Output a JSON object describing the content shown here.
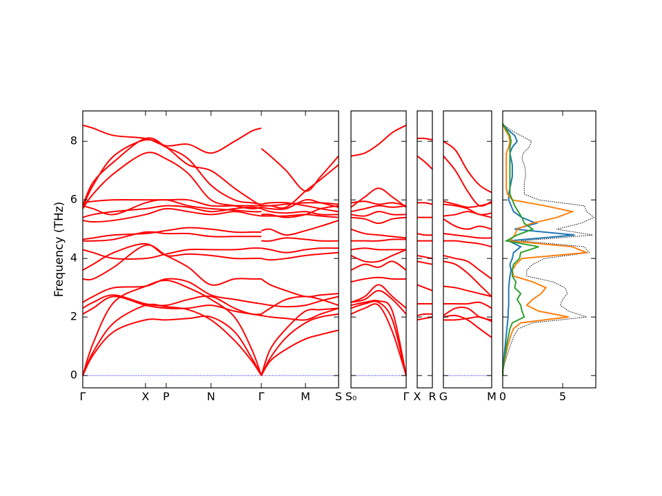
{
  "chart_data": [
    {
      "type": "bands",
      "ylabel": "Frequency (THz)",
      "color": "#ff0000",
      "hline": 0,
      "hline_color": "#0000ff",
      "ylim": [
        -0.42,
        9.04
      ],
      "yticks": [
        0,
        2,
        4,
        6,
        8
      ],
      "xlim": [
        0,
        3.71
      ],
      "xticks": [
        {
          "value": 0,
          "label": "Γ"
        },
        {
          "value": 0.91,
          "label": "X"
        },
        {
          "value": 1.21,
          "label": "P"
        },
        {
          "value": 1.86,
          "label": "N"
        },
        {
          "value": 2.59,
          "label": "Γ"
        },
        {
          "value": 3.23,
          "label": "M"
        },
        {
          "value": 3.71,
          "label": "S"
        }
      ],
      "x": [
        0,
        0.15,
        0.45,
        0.91,
        1.21,
        1.53,
        1.86,
        2.2,
        2.45,
        2.59,
        2.59,
        2.72,
        2.95,
        3.23,
        3.45,
        3.71
      ],
      "bands": [
        [
          0,
          0.7,
          1.5,
          1.9,
          1.9,
          1.95,
          2.0,
          1.5,
          0.6,
          0,
          0,
          0.5,
          0.9,
          1.25,
          1.4,
          1.55
        ],
        [
          0,
          0.8,
          1.8,
          2.4,
          2.35,
          2.25,
          1.9,
          1.2,
          0.5,
          0,
          0,
          0.6,
          1.3,
          1.8,
          2.0,
          2.1
        ],
        [
          0,
          1.1,
          2.5,
          3.05,
          3.25,
          3.0,
          2.6,
          2.0,
          0.9,
          0,
          0,
          0.9,
          1.6,
          2.2,
          2.25,
          2.3
        ],
        [
          2.1,
          2.3,
          2.7,
          2.4,
          2.3,
          2.3,
          2.4,
          2.2,
          2.1,
          2.05,
          2.05,
          2.0,
          1.95,
          1.9,
          2.1,
          2.3
        ],
        [
          2.3,
          2.5,
          2.75,
          2.45,
          2.4,
          2.6,
          2.7,
          2.3,
          2.1,
          2.1,
          2.1,
          2.3,
          2.6,
          2.7,
          2.6,
          2.4
        ],
        [
          2.5,
          2.7,
          3.0,
          3.05,
          3.3,
          3.2,
          2.75,
          2.6,
          2.5,
          2.45,
          2.45,
          2.4,
          2.35,
          2.4,
          2.55,
          2.7
        ],
        [
          3.3,
          3.3,
          3.7,
          4.45,
          4.1,
          3.7,
          3.1,
          3.3,
          3.3,
          3.3,
          3.3,
          3.1,
          2.9,
          2.7,
          2.75,
          2.8
        ],
        [
          3.6,
          3.8,
          4.2,
          4.5,
          4.1,
          4.15,
          4.1,
          4.0,
          4.0,
          4.0,
          4.0,
          3.95,
          4.0,
          4.1,
          4.15,
          4.2
        ],
        [
          4.3,
          4.2,
          4.0,
          4.0,
          4.15,
          4.3,
          4.3,
          4.3,
          4.35,
          4.35,
          4.35,
          4.3,
          4.2,
          4.3,
          4.35,
          4.35
        ],
        [
          4.6,
          4.6,
          4.65,
          4.9,
          4.85,
          4.85,
          4.75,
          4.75,
          4.75,
          4.75,
          4.6,
          4.6,
          4.7,
          4.65,
          4.6,
          4.6
        ],
        [
          4.65,
          4.7,
          4.8,
          4.85,
          4.95,
          5.05,
          5.0,
          4.9,
          4.9,
          4.9,
          4.95,
          5.0,
          4.8,
          4.95,
          5.1,
          5.3
        ],
        [
          5.3,
          5.25,
          5.3,
          5.5,
          5.7,
          5.6,
          5.5,
          5.6,
          5.5,
          5.45,
          5.45,
          5.45,
          5.45,
          5.5,
          5.45,
          5.4
        ],
        [
          5.4,
          5.5,
          5.6,
          5.7,
          5.8,
          5.75,
          5.6,
          5.7,
          5.75,
          5.7,
          5.7,
          5.6,
          5.55,
          5.6,
          5.5,
          5.5
        ],
        [
          5.8,
          5.7,
          5.5,
          5.9,
          6.0,
          5.8,
          5.7,
          5.65,
          5.6,
          5.6,
          5.5,
          5.5,
          5.4,
          5.5,
          5.7,
          5.8
        ],
        [
          5.9,
          5.95,
          6.0,
          6.0,
          6.0,
          6.0,
          5.8,
          5.8,
          5.8,
          5.8,
          5.8,
          5.8,
          5.85,
          5.9,
          5.9,
          5.85
        ],
        [
          5.7,
          6.2,
          6.9,
          7.6,
          7.4,
          6.9,
          6.0,
          5.8,
          5.7,
          5.75,
          5.75,
          5.7,
          5.7,
          6.0,
          5.9,
          5.75
        ],
        [
          5.8,
          6.6,
          7.3,
          8.1,
          7.8,
          7.2,
          7.0,
          6.4,
          6.0,
          5.8,
          5.8,
          5.8,
          5.75,
          6.3,
          6.7,
          7.2
        ],
        [
          8.55,
          8.45,
          8.2,
          8.1,
          7.85,
          7.9,
          7.6,
          8.0,
          8.35,
          8.45,
          7.75,
          7.5,
          7.0,
          6.3,
          6.8,
          7.5
        ],
        [
          5.75,
          6.5,
          7.5,
          8.05,
          7.8,
          7.4,
          6.5,
          6.0,
          5.9,
          5.85,
          5.85,
          5.9,
          5.9,
          5.8,
          5.7,
          5.6
        ]
      ]
    },
    {
      "type": "bands",
      "color": "#ff0000",
      "hline": 0,
      "hline_color": "#0000ff",
      "ylim": [
        -0.42,
        9.04
      ],
      "xlim": [
        0,
        0.8
      ],
      "xticks": [
        {
          "value": 0,
          "label": "S₀"
        },
        {
          "value": 0.8,
          "label": "Γ"
        }
      ],
      "x": [
        0,
        0.2,
        0.4,
        0.6,
        0.8
      ],
      "bands": [
        [
          2.1,
          2.3,
          2.4,
          1.5,
          0
        ],
        [
          2.3,
          2.45,
          2.5,
          1.9,
          0
        ],
        [
          2.4,
          2.5,
          2.55,
          2.2,
          0
        ],
        [
          2.5,
          2.6,
          2.9,
          2.6,
          2.1
        ],
        [
          2.5,
          2.7,
          3.1,
          2.7,
          2.3
        ],
        [
          3.2,
          3.3,
          3.35,
          3.3,
          3.3
        ],
        [
          3.6,
          3.8,
          3.7,
          3.9,
          3.6
        ],
        [
          4.1,
          3.9,
          3.9,
          4.1,
          4.3
        ],
        [
          4.3,
          4.35,
          4.3,
          4.3,
          4.3
        ],
        [
          4.6,
          4.6,
          4.6,
          4.65,
          4.65
        ],
        [
          5.0,
          4.85,
          4.8,
          4.75,
          4.7
        ],
        [
          5.4,
          5.35,
          5.2,
          5.35,
          5.4
        ],
        [
          5.5,
          5.45,
          5.6,
          5.5,
          5.5
        ],
        [
          5.6,
          5.7,
          5.8,
          5.75,
          5.8
        ],
        [
          5.9,
          5.95,
          5.85,
          5.9,
          5.8
        ],
        [
          5.75,
          6.1,
          6.4,
          6.1,
          5.75
        ],
        [
          7.5,
          7.6,
          7.9,
          8.3,
          8.55
        ]
      ]
    },
    {
      "type": "bands",
      "color": "#ff0000",
      "ylim": [
        -0.42,
        9.04
      ],
      "xlim": [
        0,
        0.22
      ],
      "xticks": [
        {
          "value": 0,
          "label": "X"
        },
        {
          "value": 0.22,
          "label": "R"
        }
      ],
      "x": [
        0,
        0.11,
        0.22
      ],
      "bands": [
        [
          1.9,
          1.95,
          2.0
        ],
        [
          2.05,
          2.1,
          2.1
        ],
        [
          2.45,
          2.45,
          2.45
        ],
        [
          3.1,
          3.0,
          2.9
        ],
        [
          3.9,
          3.85,
          3.8
        ],
        [
          4.1,
          4.05,
          4.0
        ],
        [
          4.6,
          4.6,
          4.6
        ],
        [
          4.85,
          4.8,
          4.8
        ],
        [
          5.4,
          5.4,
          5.4
        ],
        [
          5.9,
          5.9,
          5.85
        ],
        [
          7.5,
          7.3,
          7.05
        ],
        [
          8.1,
          8.1,
          8.05
        ]
      ]
    },
    {
      "type": "bands",
      "color": "#ff0000",
      "hline": 0,
      "hline_color": "#0000ff",
      "ylim": [
        -0.42,
        9.04
      ],
      "xlim": [
        0,
        0.7
      ],
      "xticks": [
        {
          "value": 0,
          "label": "G"
        },
        {
          "value": 0.7,
          "label": "M"
        }
      ],
      "x": [
        0,
        0.175,
        0.35,
        0.525,
        0.7
      ],
      "bands": [
        [
          1.9,
          1.9,
          1.95,
          2.0,
          1.85
        ],
        [
          2.0,
          2.05,
          1.9,
          1.6,
          1.3
        ],
        [
          2.05,
          2.3,
          2.3,
          2.0,
          1.9
        ],
        [
          2.45,
          2.45,
          2.45,
          2.5,
          2.3
        ],
        [
          3.05,
          3.0,
          2.9,
          2.8,
          2.7
        ],
        [
          3.9,
          3.8,
          3.5,
          3.1,
          2.7
        ],
        [
          4.1,
          4.0,
          3.9,
          3.6,
          3.3
        ],
        [
          4.6,
          4.6,
          4.55,
          4.5,
          4.4
        ],
        [
          4.85,
          4.8,
          4.75,
          4.7,
          4.7
        ],
        [
          5.35,
          5.1,
          5.0,
          5.1,
          5.0
        ],
        [
          5.45,
          5.5,
          5.6,
          5.5,
          5.4
        ],
        [
          5.85,
          5.8,
          5.7,
          5.5,
          5.55
        ],
        [
          5.95,
          5.85,
          5.75,
          5.8,
          5.9
        ],
        [
          7.5,
          7.0,
          6.3,
          5.8,
          5.95
        ],
        [
          8.0,
          7.7,
          7.0,
          6.5,
          6.25
        ]
      ]
    },
    {
      "type": "dos",
      "ylim": [
        -0.42,
        9.04
      ],
      "xlim": [
        0,
        7.76
      ],
      "xticks": [
        0,
        5
      ],
      "y": [
        0,
        0.2,
        0.4,
        0.6,
        0.8,
        1.0,
        1.2,
        1.4,
        1.6,
        1.8,
        2.0,
        2.2,
        2.4,
        2.6,
        2.8,
        3.0,
        3.2,
        3.4,
        3.6,
        3.8,
        4.0,
        4.2,
        4.4,
        4.6,
        4.8,
        5.0,
        5.2,
        5.4,
        5.6,
        5.8,
        6.0,
        6.2,
        6.4,
        6.6,
        6.8,
        7.0,
        7.2,
        7.4,
        7.6,
        7.8,
        8.0,
        8.2,
        8.4,
        8.6
      ],
      "series": [
        {
          "color": "#000000",
          "linestyle": "dotted",
          "values": [
            0,
            0.05,
            0.15,
            0.3,
            0.45,
            0.6,
            0.8,
            1.0,
            1.3,
            2.5,
            7.0,
            5.5,
            4.8,
            5.0,
            5.4,
            5.2,
            4.2,
            2.0,
            2.0,
            2.5,
            3.5,
            7.2,
            6.8,
            1.5,
            7.5,
            4.5,
            6.5,
            7.6,
            7.0,
            6.8,
            3.0,
            1.8,
            1.8,
            1.8,
            1.9,
            1.9,
            1.8,
            1.6,
            1.7,
            2.2,
            2.4,
            1.5,
            0.6,
            0
          ]
        },
        {
          "color": "#1f77b4",
          "linestyle": "solid",
          "values": [
            0,
            0.02,
            0.05,
            0.1,
            0.15,
            0.2,
            0.25,
            0.3,
            0.35,
            0.4,
            0.45,
            0.45,
            0.5,
            0.5,
            0.5,
            0.5,
            0.55,
            0.6,
            0.7,
            0.6,
            0.8,
            0.9,
            1.5,
            0.5,
            6.0,
            1.0,
            2.8,
            1.6,
            0.9,
            0.7,
            0.5,
            0.5,
            0.6,
            0.7,
            0.8,
            0.8,
            0.8,
            0.7,
            0.6,
            0.8,
            1.2,
            1.0,
            0.4,
            0
          ]
        },
        {
          "color": "#ff7f0e",
          "linestyle": "solid",
          "values": [
            0,
            0.03,
            0.1,
            0.2,
            0.3,
            0.4,
            0.55,
            0.7,
            0.9,
            1.5,
            5.5,
            3.0,
            2.0,
            2.5,
            3.2,
            3.6,
            2.5,
            0.9,
            0.8,
            1.1,
            1.6,
            7.0,
            5.8,
            0.6,
            1.0,
            1.2,
            2.4,
            4.5,
            5.8,
            3.5,
            0.8,
            0.4,
            0.3,
            0.3,
            0.3,
            0.3,
            0.3,
            0.3,
            0.3,
            0.5,
            0.6,
            0.5,
            0.2,
            0
          ]
        },
        {
          "color": "#2ca02c",
          "linestyle": "solid",
          "values": [
            0,
            0.02,
            0.1,
            0.15,
            0.25,
            0.3,
            0.4,
            0.5,
            0.6,
            0.8,
            1.8,
            1.6,
            1.5,
            1.2,
            1.5,
            1.0,
            1.1,
            0.8,
            0.8,
            0.9,
            1.4,
            1.5,
            3.0,
            0.3,
            1.2,
            2.5,
            1.8,
            1.6,
            1.3,
            1.0,
            0.8,
            0.6,
            0.6,
            0.6,
            0.6,
            0.6,
            0.6,
            0.6,
            0.6,
            0.6,
            0.7,
            0.6,
            0.3,
            0
          ]
        }
      ]
    }
  ]
}
